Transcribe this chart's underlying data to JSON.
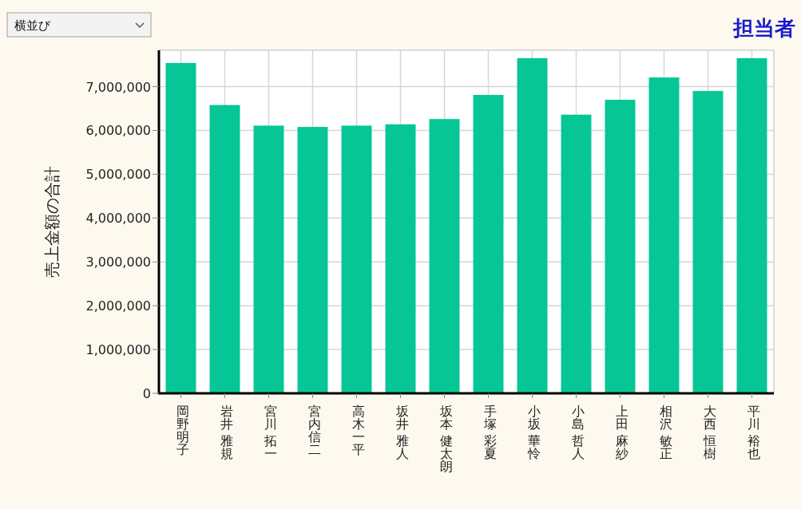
{
  "chart_data": {
    "type": "bar",
    "title": "担当者",
    "ylabel": "売上金額の合計",
    "annotations": [
      "横並び"
    ],
    "categories": [
      "岡野明子",
      "岩井 雅規",
      "宮川 拓一",
      "宮内信二",
      "高木一平",
      "坂井 雅人",
      "坂本 健太朗",
      "手塚 彩夏",
      "小坂 華怜",
      "小島 哲人",
      "上田 麻紗",
      "相沢 敏正",
      "大西 恒樹",
      "平川 裕也"
    ],
    "values": [
      7540000,
      6580000,
      6110000,
      6080000,
      6110000,
      6140000,
      6260000,
      6810000,
      7650000,
      6360000,
      6700000,
      7210000,
      6900000,
      7650000
    ],
    "color": "#06c695",
    "ylim": [
      0,
      7830000
    ],
    "yticks": [
      {
        "value": 0,
        "label": "0"
      },
      {
        "value": 1000000,
        "label": "1,000,000"
      },
      {
        "value": 2000000,
        "label": "2,000,000"
      },
      {
        "value": 3000000,
        "label": "3,000,000"
      },
      {
        "value": 4000000,
        "label": "4,000,000"
      },
      {
        "value": 5000000,
        "label": "5,000,000"
      },
      {
        "value": 6000000,
        "label": "6,000,000"
      },
      {
        "value": 7000000,
        "label": "7,000,000"
      }
    ],
    "grid": true
  }
}
